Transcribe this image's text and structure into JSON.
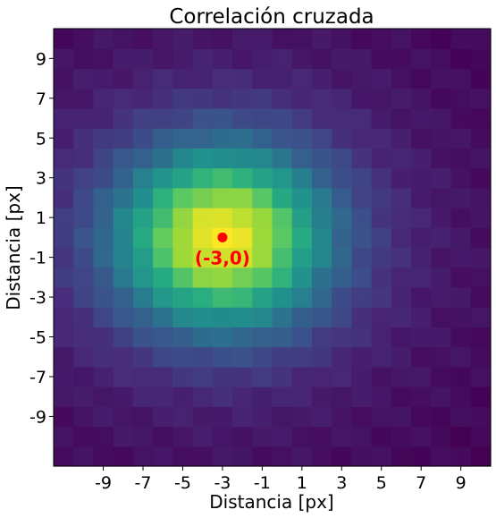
{
  "chart_data": {
    "type": "heatmap",
    "title": "Correlación cruzada",
    "xlabel": "Distancia [px]",
    "ylabel": "Distancia [px]",
    "x_range": [
      -11,
      10
    ],
    "y_range": [
      -11,
      10
    ],
    "x_ticks": [
      "-9",
      "-7",
      "-5",
      "-3",
      "-1",
      "1",
      "3",
      "5",
      "7",
      "9"
    ],
    "y_ticks": [
      "9",
      "7",
      "5",
      "3",
      "1",
      "-1",
      "-3",
      "-5",
      "-7",
      "-9"
    ],
    "colormap": "viridis",
    "peak": {
      "x": -3,
      "y": 0,
      "label": "(-3,0)",
      "color": "#ff0000"
    },
    "grid": false,
    "legend": "none"
  }
}
